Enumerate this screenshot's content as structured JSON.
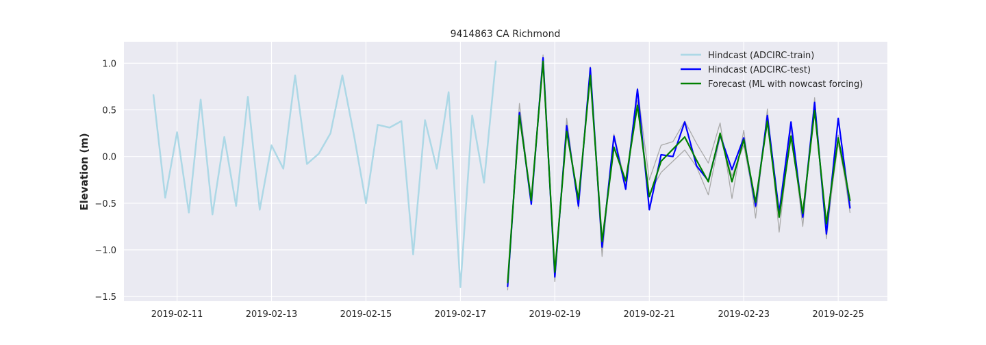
{
  "chart_data": {
    "type": "line",
    "title": "9414863 CA Richmond",
    "xlabel": "",
    "ylabel": "Elevation (m)",
    "x_ticks": [
      "2019-02-11",
      "2019-02-13",
      "2019-02-15",
      "2019-02-17",
      "2019-02-19",
      "2019-02-21",
      "2019-02-23",
      "2019-02-25"
    ],
    "y_ticks": [
      1.0,
      0.5,
      0.0,
      -0.5,
      -1.0,
      -1.5
    ],
    "y_tick_labels": [
      "1.0",
      "0.5",
      "0.0",
      "−0.5",
      "−1.0",
      "−1.5"
    ],
    "xlim": [
      "2019-02-09T21:00",
      "2019-02-26T01:00"
    ],
    "ylim": [
      -1.55,
      1.23
    ],
    "grid": true,
    "legend_position": "top-right",
    "series": [
      {
        "name": "Hindcast (ADCIRC-train)",
        "color": "#add8e6",
        "width": 2.5,
        "x": [
          "2019-02-10T12:00",
          "2019-02-10T18:00",
          "2019-02-11T00:00",
          "2019-02-11T06:00",
          "2019-02-11T12:00",
          "2019-02-11T18:00",
          "2019-02-12T00:00",
          "2019-02-12T06:00",
          "2019-02-12T12:00",
          "2019-02-12T18:00",
          "2019-02-13T00:00",
          "2019-02-13T06:00",
          "2019-02-13T12:00",
          "2019-02-13T18:00",
          "2019-02-14T00:00",
          "2019-02-14T06:00",
          "2019-02-14T12:00",
          "2019-02-14T18:00",
          "2019-02-15T00:00",
          "2019-02-15T06:00",
          "2019-02-15T12:00",
          "2019-02-15T18:00",
          "2019-02-16T00:00",
          "2019-02-16T06:00",
          "2019-02-16T12:00",
          "2019-02-16T18:00",
          "2019-02-17T00:00",
          "2019-02-17T06:00",
          "2019-02-17T12:00",
          "2019-02-17T18:00"
        ],
        "y": [
          0.66,
          -0.44,
          0.26,
          -0.6,
          0.61,
          -0.62,
          0.21,
          -0.53,
          0.64,
          -0.57,
          0.12,
          -0.13,
          0.87,
          -0.08,
          0.03,
          0.25,
          0.87,
          0.22,
          -0.5,
          0.34,
          0.31,
          0.38,
          -1.05,
          0.39,
          -0.13,
          0.69,
          -1.4,
          0.44,
          -0.28,
          1.02
        ]
      },
      {
        "name": "",
        "color": "#a9a9a9",
        "width": 1.3,
        "x": [
          "2019-02-18T00:00",
          "2019-02-18T06:00",
          "2019-02-18T12:00",
          "2019-02-18T18:00",
          "2019-02-19T00:00",
          "2019-02-19T06:00",
          "2019-02-19T12:00",
          "2019-02-19T18:00",
          "2019-02-20T00:00",
          "2019-02-20T06:00",
          "2019-02-20T12:00",
          "2019-02-20T18:00",
          "2019-02-21T00:00",
          "2019-02-21T06:00",
          "2019-02-21T12:00",
          "2019-02-21T18:00",
          "2019-02-22T00:00",
          "2019-02-22T06:00",
          "2019-02-22T12:00",
          "2019-02-22T18:00",
          "2019-02-23T00:00",
          "2019-02-23T06:00",
          "2019-02-23T12:00",
          "2019-02-23T18:00",
          "2019-02-24T00:00",
          "2019-02-24T06:00",
          "2019-02-24T12:00",
          "2019-02-24T18:00",
          "2019-02-25T00:00",
          "2019-02-25T06:00"
        ],
        "y": [
          -1.43,
          0.57,
          -0.5,
          1.09,
          -1.34,
          0.41,
          -0.56,
          0.96,
          -1.07,
          0.24,
          -0.3,
          0.73,
          -0.25,
          0.12,
          0.16,
          0.38,
          0.14,
          -0.07,
          0.36,
          -0.45,
          0.28,
          -0.66,
          0.51,
          -0.81,
          0.32,
          -0.75,
          0.63,
          -0.88,
          0.23,
          -0.6
        ]
      },
      {
        "name": "",
        "color": "#a9a9a9",
        "width": 1.3,
        "x": [
          "2019-02-18T00:00",
          "2019-02-18T06:00",
          "2019-02-18T12:00",
          "2019-02-18T18:00",
          "2019-02-19T00:00",
          "2019-02-19T06:00",
          "2019-02-19T12:00",
          "2019-02-19T18:00",
          "2019-02-20T00:00",
          "2019-02-20T06:00",
          "2019-02-20T12:00",
          "2019-02-20T18:00",
          "2019-02-21T00:00",
          "2019-02-21T06:00",
          "2019-02-21T12:00",
          "2019-02-21T18:00",
          "2019-02-22T00:00",
          "2019-02-22T06:00",
          "2019-02-22T12:00",
          "2019-02-22T18:00",
          "2019-02-23T00:00",
          "2019-02-23T06:00",
          "2019-02-23T12:00",
          "2019-02-23T18:00",
          "2019-02-24T00:00",
          "2019-02-24T06:00",
          "2019-02-24T12:00",
          "2019-02-24T18:00",
          "2019-02-25T00:00",
          "2019-02-25T06:00"
        ],
        "y": [
          -1.36,
          0.48,
          -0.48,
          1.03,
          -1.28,
          0.36,
          -0.52,
          0.9,
          -0.99,
          0.19,
          -0.27,
          0.6,
          -0.4,
          -0.17,
          -0.05,
          0.07,
          -0.11,
          -0.41,
          0.22,
          -0.21,
          0.12,
          -0.55,
          0.42,
          -0.64,
          0.2,
          -0.63,
          0.47,
          -0.77,
          0.14,
          -0.5
        ]
      },
      {
        "name": "Hindcast (ADCIRC-test)",
        "color": "#0000ff",
        "width": 2.2,
        "x": [
          "2019-02-18T00:00",
          "2019-02-18T06:00",
          "2019-02-18T12:00",
          "2019-02-18T18:00",
          "2019-02-19T00:00",
          "2019-02-19T06:00",
          "2019-02-19T12:00",
          "2019-02-19T18:00",
          "2019-02-20T00:00",
          "2019-02-20T06:00",
          "2019-02-20T12:00",
          "2019-02-20T18:00",
          "2019-02-21T00:00",
          "2019-02-21T06:00",
          "2019-02-21T12:00",
          "2019-02-21T18:00",
          "2019-02-22T00:00",
          "2019-02-22T06:00",
          "2019-02-22T12:00",
          "2019-02-22T18:00",
          "2019-02-23T00:00",
          "2019-02-23T06:00",
          "2019-02-23T12:00",
          "2019-02-23T18:00",
          "2019-02-24T00:00",
          "2019-02-24T06:00",
          "2019-02-24T12:00",
          "2019-02-24T18:00",
          "2019-02-25T00:00",
          "2019-02-25T06:00"
        ],
        "y": [
          -1.39,
          0.47,
          -0.51,
          1.06,
          -1.29,
          0.33,
          -0.53,
          0.95,
          -0.97,
          0.22,
          -0.35,
          0.72,
          -0.57,
          0.02,
          0.0,
          0.37,
          -0.1,
          -0.26,
          0.23,
          -0.14,
          0.2,
          -0.53,
          0.44,
          -0.6,
          0.37,
          -0.65,
          0.58,
          -0.83,
          0.41,
          -0.55
        ]
      },
      {
        "name": "Forecast (ML with nowcast forcing)",
        "color": "#008000",
        "width": 2.2,
        "x": [
          "2019-02-18T00:00",
          "2019-02-18T06:00",
          "2019-02-18T12:00",
          "2019-02-18T18:00",
          "2019-02-19T00:00",
          "2019-02-19T06:00",
          "2019-02-19T12:00",
          "2019-02-19T18:00",
          "2019-02-20T00:00",
          "2019-02-20T06:00",
          "2019-02-20T12:00",
          "2019-02-20T18:00",
          "2019-02-21T00:00",
          "2019-02-21T06:00",
          "2019-02-21T12:00",
          "2019-02-21T18:00",
          "2019-02-22T00:00",
          "2019-02-22T06:00",
          "2019-02-22T12:00",
          "2019-02-22T18:00",
          "2019-02-23T00:00",
          "2019-02-23T06:00",
          "2019-02-23T12:00",
          "2019-02-23T18:00",
          "2019-02-24T00:00",
          "2019-02-24T06:00",
          "2019-02-24T12:00",
          "2019-02-24T18:00",
          "2019-02-25T00:00",
          "2019-02-25T06:00"
        ],
        "y": [
          -1.35,
          0.44,
          -0.47,
          1.02,
          -1.24,
          0.27,
          -0.46,
          0.87,
          -0.91,
          0.1,
          -0.26,
          0.55,
          -0.43,
          -0.05,
          0.08,
          0.21,
          -0.04,
          -0.27,
          0.25,
          -0.27,
          0.18,
          -0.49,
          0.38,
          -0.65,
          0.22,
          -0.61,
          0.49,
          -0.72,
          0.2,
          -0.47
        ]
      }
    ]
  }
}
